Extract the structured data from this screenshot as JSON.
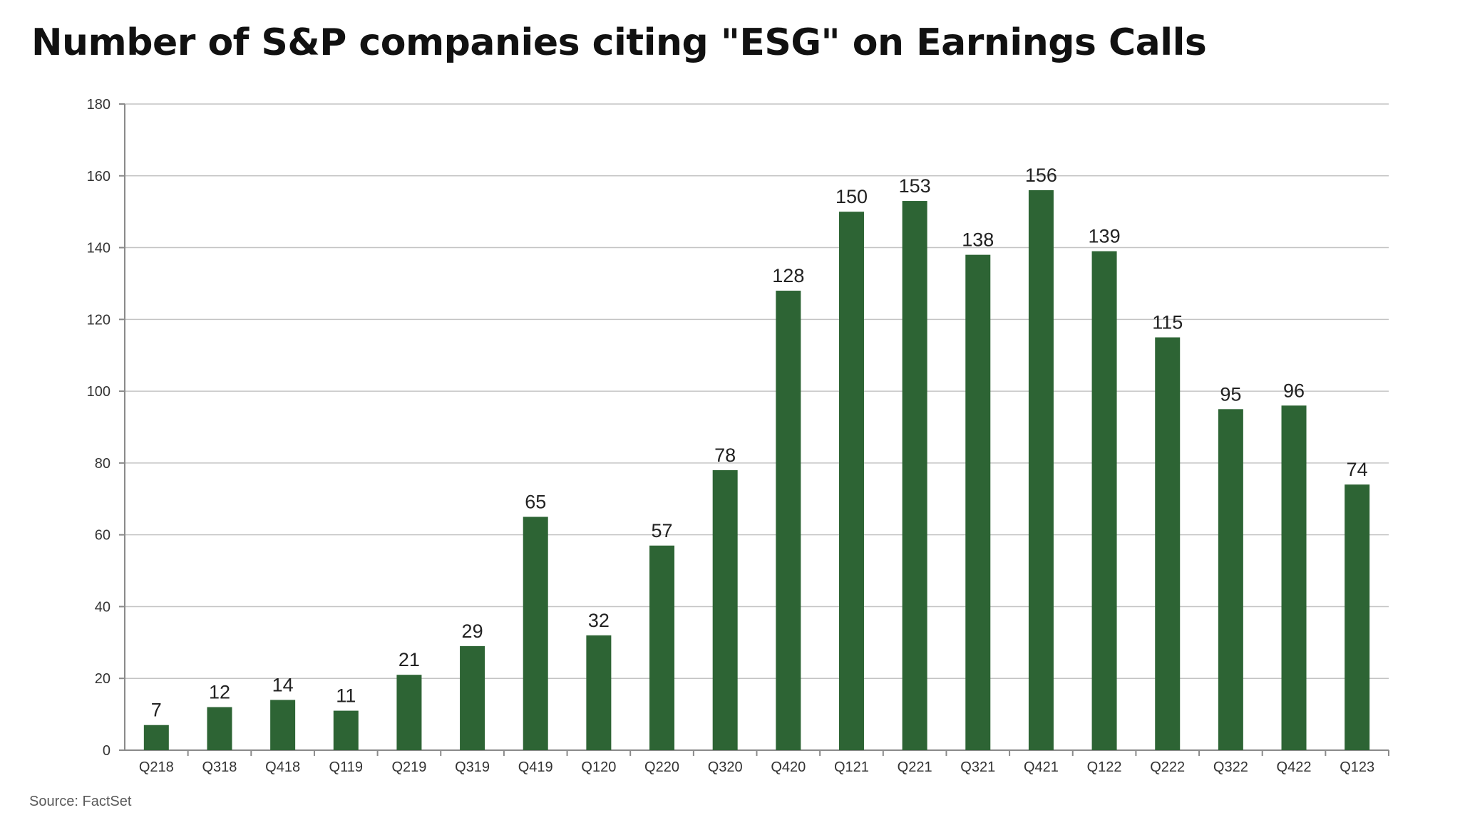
{
  "title": "Number of S&P companies citing \"ESG\" on Earnings Calls",
  "source": "Source: FactSet",
  "colors": {
    "bar": "#2d6434",
    "background": "#ffffff",
    "title": "#111111"
  },
  "chart_data": {
    "type": "bar",
    "title": "Number of S&P companies citing \"ESG\" on Earnings Calls",
    "xlabel": "",
    "ylabel": "",
    "ylim": [
      0,
      180
    ],
    "yticks": [
      0,
      20,
      40,
      60,
      80,
      100,
      120,
      140,
      160,
      180
    ],
    "grid": true,
    "categories": [
      "Q218",
      "Q318",
      "Q418",
      "Q119",
      "Q219",
      "Q319",
      "Q419",
      "Q120",
      "Q220",
      "Q320",
      "Q420",
      "Q121",
      "Q221",
      "Q321",
      "Q421",
      "Q122",
      "Q222",
      "Q322",
      "Q422",
      "Q123"
    ],
    "values": [
      7,
      12,
      14,
      11,
      21,
      29,
      65,
      32,
      57,
      78,
      128,
      150,
      153,
      138,
      156,
      139,
      115,
      95,
      96,
      74
    ]
  }
}
